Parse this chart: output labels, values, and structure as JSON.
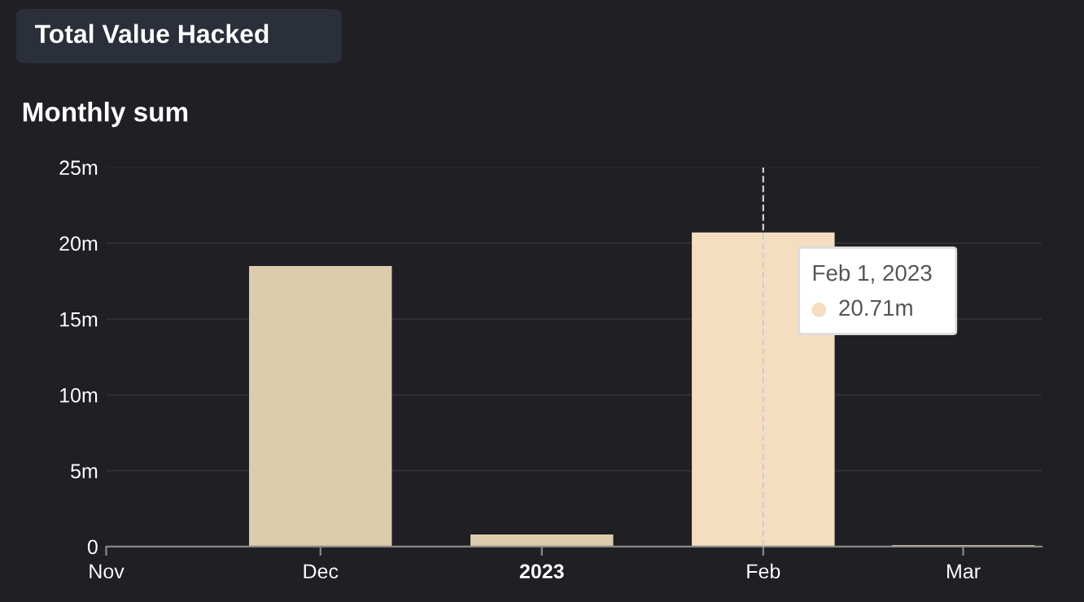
{
  "chart_data": {
    "type": "bar",
    "title": "Total Value Hacked",
    "subtitle": "Monthly sum",
    "x": [
      "2022-12-01",
      "2023-01-01",
      "2023-02-01",
      "2023-03-01"
    ],
    "values": [
      18.5,
      0.8,
      20.71,
      0.1
    ],
    "colors": [
      "#dccbac",
      "#dccbac",
      "#f5dec0",
      "#dccbac"
    ],
    "xlim": [
      "2022-11-01",
      "2023-03-12"
    ],
    "xticks": [
      {
        "value": "2022-11-01",
        "label": "Nov"
      },
      {
        "value": "2022-12-01",
        "label": "Dec"
      },
      {
        "value": "2023-01-01",
        "label": "2023"
      },
      {
        "value": "2023-02-01",
        "label": "Feb"
      },
      {
        "value": "2023-03-01",
        "label": "Mar"
      }
    ],
    "ylim": [
      0,
      25
    ],
    "yticks": [
      {
        "value": 0,
        "label": "0"
      },
      {
        "value": 5,
        "label": "5m"
      },
      {
        "value": 10,
        "label": "10m"
      },
      {
        "value": 15,
        "label": "15m"
      },
      {
        "value": 20,
        "label": "20m"
      },
      {
        "value": 25,
        "label": "25m"
      }
    ],
    "grid": "y",
    "ref_lines": [
      {
        "axis": "x",
        "value": "2023-02-01",
        "color": "#cfcfcf",
        "line_style": "dashed"
      }
    ],
    "annotations": [
      "Feb 1, 2023",
      "20.71m"
    ]
  }
}
